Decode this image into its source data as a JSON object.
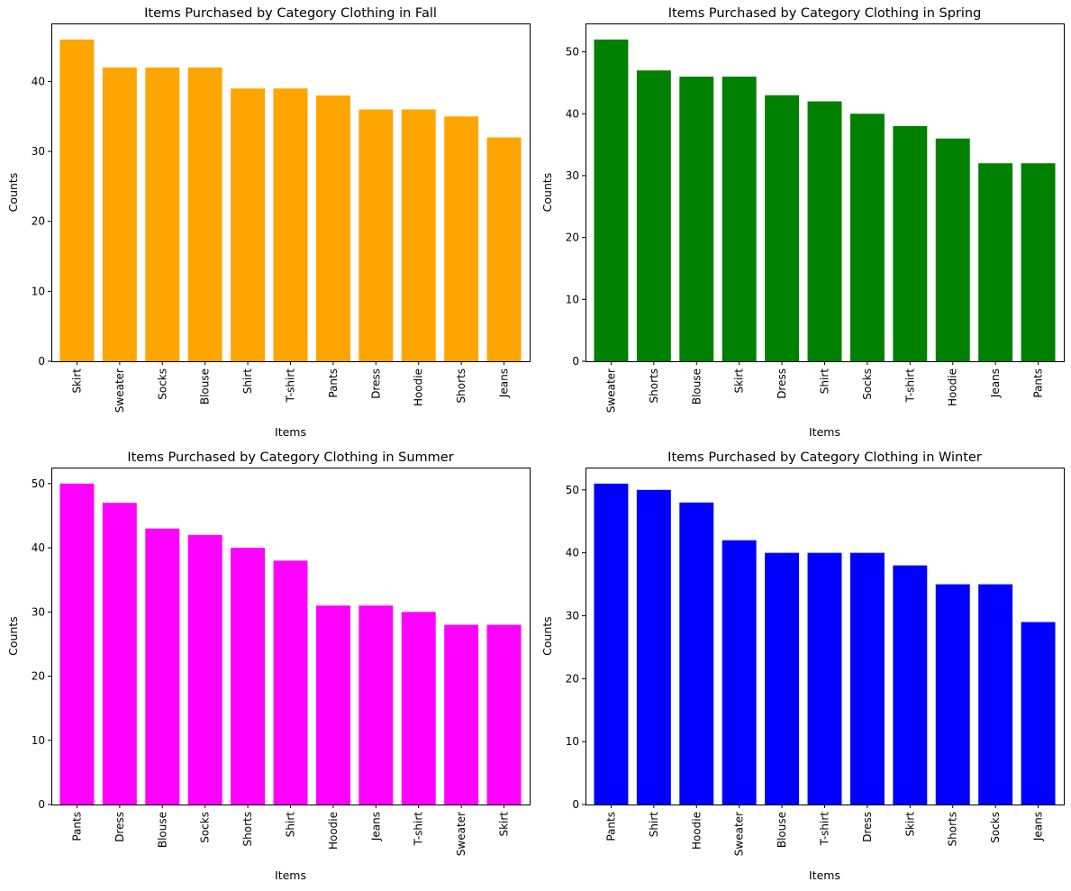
{
  "chart_data": [
    {
      "type": "bar",
      "title": "Items Purchased by Category Clothing in Fall",
      "xlabel": "Items",
      "ylabel": "Counts",
      "color": "#ffa500",
      "categories": [
        "Skirt",
        "Sweater",
        "Socks",
        "Blouse",
        "Shirt",
        "T-shirt",
        "Pants",
        "Dress",
        "Hoodie",
        "Shorts",
        "Jeans"
      ],
      "values": [
        46,
        42,
        42,
        42,
        39,
        39,
        38,
        36,
        36,
        35,
        32
      ],
      "ylim": [
        0,
        48.3
      ],
      "yticks": [
        0,
        10,
        20,
        30,
        40
      ],
      "grid": false
    },
    {
      "type": "bar",
      "title": "Items Purchased by Category Clothing in Spring",
      "xlabel": "Items",
      "ylabel": "Counts",
      "color": "#008000",
      "categories": [
        "Sweater",
        "Shorts",
        "Blouse",
        "Skirt",
        "Dress",
        "Shirt",
        "Socks",
        "T-shirt",
        "Hoodie",
        "Jeans",
        "Pants"
      ],
      "values": [
        52,
        47,
        46,
        46,
        43,
        42,
        40,
        38,
        36,
        32,
        32
      ],
      "ylim": [
        0,
        54.6
      ],
      "yticks": [
        0,
        10,
        20,
        30,
        40,
        50
      ],
      "grid": false
    },
    {
      "type": "bar",
      "title": "Items Purchased by Category Clothing in Summer",
      "xlabel": "Items",
      "ylabel": "Counts",
      "color": "#ff00ff",
      "categories": [
        "Pants",
        "Dress",
        "Blouse",
        "Socks",
        "Shorts",
        "Shirt",
        "Hoodie",
        "Jeans",
        "T-shirt",
        "Sweater",
        "Skirt"
      ],
      "values": [
        50,
        47,
        43,
        42,
        40,
        38,
        31,
        31,
        30,
        28,
        28
      ],
      "ylim": [
        0,
        52.5
      ],
      "yticks": [
        0,
        10,
        20,
        30,
        40,
        50
      ],
      "grid": false
    },
    {
      "type": "bar",
      "title": "Items Purchased by Category Clothing in Winter",
      "xlabel": "Items",
      "ylabel": "Counts",
      "color": "#0000ff",
      "categories": [
        "Pants",
        "Shirt",
        "Hoodie",
        "Sweater",
        "Blouse",
        "T-shirt",
        "Dress",
        "Skirt",
        "Shorts",
        "Socks",
        "Jeans"
      ],
      "values": [
        51,
        50,
        48,
        42,
        40,
        40,
        40,
        38,
        35,
        35,
        29
      ],
      "ylim": [
        0,
        53.55
      ],
      "yticks": [
        0,
        10,
        20,
        30,
        40,
        50
      ],
      "grid": false
    }
  ]
}
